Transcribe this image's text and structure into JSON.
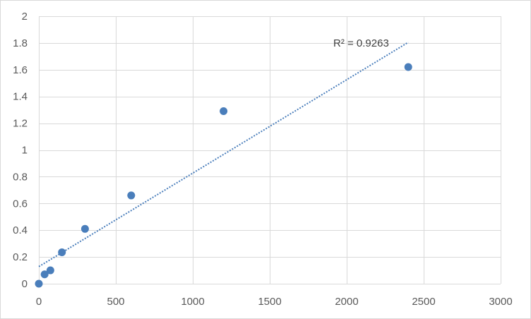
{
  "chart_data": {
    "type": "scatter",
    "title": "",
    "xlabel": "",
    "ylabel": "",
    "xlim": [
      0,
      3000
    ],
    "ylim": [
      0,
      2
    ],
    "x_ticks": [
      0,
      500,
      1000,
      1500,
      2000,
      2500,
      3000
    ],
    "y_ticks": [
      0,
      0.2,
      0.4,
      0.6,
      0.8,
      1,
      1.2,
      1.4,
      1.6,
      1.8,
      2
    ],
    "x_tick_labels": [
      "0",
      "500",
      "1000",
      "1500",
      "2000",
      "2500",
      "3000"
    ],
    "y_tick_labels": [
      "0",
      "0.2",
      "0.4",
      "0.6",
      "0.8",
      "1",
      "1.2",
      "1.4",
      "1.6",
      "1.8",
      "2"
    ],
    "grid": true,
    "legend": "none",
    "series": [
      {
        "points": [
          {
            "x": 0,
            "y": 0
          },
          {
            "x": 37.5,
            "y": 0.07
          },
          {
            "x": 75,
            "y": 0.1
          },
          {
            "x": 150,
            "y": 0.235
          },
          {
            "x": 300,
            "y": 0.41
          },
          {
            "x": 600,
            "y": 0.66
          },
          {
            "x": 1200,
            "y": 1.29
          },
          {
            "x": 2400,
            "y": 1.62
          }
        ],
        "color": "#4a7ebb"
      }
    ],
    "trendline": {
      "type": "linear",
      "style": "dotted",
      "color": "#4a7ebb",
      "x_range": [
        0,
        2400
      ],
      "y_start": 0.128,
      "y_end": 1.805,
      "r2_text": "R² = 0.9263"
    },
    "colors": {
      "grid": "#d9d9d9",
      "border": "#d9d9d9",
      "tick_text": "#595959"
    }
  }
}
